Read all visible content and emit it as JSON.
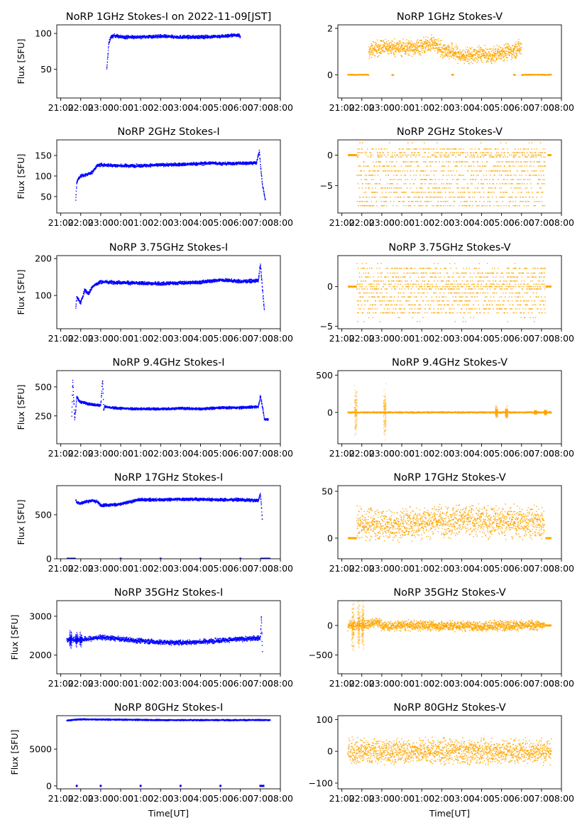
{
  "figure": {
    "shared_xlabel": "Time[UT]",
    "ylabel": "Flux [SFU]",
    "x_ticks": [
      "21:00",
      "22:00",
      "23:00",
      "00:00",
      "01:00",
      "02:00",
      "03:00",
      "04:00",
      "05:00",
      "06:00",
      "07:00",
      "08:00"
    ],
    "colors": {
      "stokes_i": "#0000ff",
      "stokes_v": "#ffa500"
    }
  },
  "chart_data": [
    {
      "type": "scatter",
      "title": "NoRP 1GHz Stokes-I on 2022-11-09[JST]",
      "xlabel": "",
      "ylabel": "Flux [SFU]",
      "color": "#0000ff",
      "xlim_hours": [
        -0.2,
        11.0
      ],
      "ylim": [
        10,
        112
      ],
      "yticks": [
        50,
        100
      ],
      "segments": [
        {
          "x": [
            2.3,
            2.35,
            2.4,
            2.5,
            2.7,
            3.0,
            4.0,
            5.0,
            6.0,
            7.0,
            8.0,
            8.5,
            8.9,
            9.0
          ],
          "y": [
            48,
            65,
            85,
            95,
            97,
            95,
            95,
            96,
            95,
            95,
            96,
            97,
            98,
            95
          ],
          "spread": 3
        }
      ]
    },
    {
      "type": "scatter",
      "title": "NoRP 1GHz Stokes-V",
      "xlabel": "",
      "ylabel": "",
      "color": "#ffa500",
      "xlim_hours": [
        -0.2,
        11.0
      ],
      "ylim": [
        -1.0,
        2.15
      ],
      "yticks": [
        0,
        2
      ],
      "segments": [
        {
          "x": [
            0.3,
            1.35
          ],
          "y": [
            0,
            0
          ],
          "spread": 0.03
        },
        {
          "x": [
            2.5,
            2.6
          ],
          "y": [
            0,
            0
          ],
          "spread": 0.03
        },
        {
          "x": [
            5.5,
            5.6
          ],
          "y": [
            0,
            0
          ],
          "spread": 0.03
        },
        {
          "x": [
            8.6,
            8.7
          ],
          "y": [
            0,
            0
          ],
          "spread": 0.03
        },
        {
          "x": [
            9.0,
            10.5
          ],
          "y": [
            0,
            0
          ],
          "spread": 0.03
        },
        {
          "x": [
            1.35,
            1.5,
            2.0,
            3.0,
            4.0,
            4.5,
            5.0,
            5.5,
            6.0,
            7.0,
            7.5,
            8.0,
            8.5,
            9.0
          ],
          "y": [
            0.9,
            1.1,
            1.2,
            1.15,
            1.2,
            1.4,
            1.1,
            1.0,
            0.8,
            0.9,
            0.8,
            1.0,
            1.0,
            1.2
          ],
          "spread": 0.45
        }
      ]
    },
    {
      "type": "scatter",
      "title": "NoRP 2GHz Stokes-I",
      "xlabel": "",
      "ylabel": "Flux [SFU]",
      "color": "#0000ff",
      "xlim_hours": [
        -0.2,
        11.0
      ],
      "ylim": [
        10,
        188
      ],
      "yticks": [
        50,
        100,
        150
      ],
      "segments": [
        {
          "x": [
            0.75,
            0.8,
            0.9,
            1.0,
            1.3,
            1.6,
            1.8,
            2.0,
            3.0,
            4.0,
            5.0,
            6.0,
            7.0,
            7.7,
            8.0,
            9.0,
            9.8,
            9.95,
            10.0,
            10.1,
            10.25
          ],
          "y": [
            40,
            85,
            95,
            100,
            103,
            110,
            125,
            127,
            125,
            125,
            127,
            128,
            130,
            132,
            130,
            131,
            132,
            160,
            130,
            80,
            40
          ],
          "spread": 5
        }
      ]
    },
    {
      "type": "scatter",
      "title": "NoRP 2GHz Stokes-V",
      "xlabel": "",
      "ylabel": "",
      "color": "#ffa500",
      "xlim_hours": [
        -0.2,
        11.0
      ],
      "ylim": [
        -9.5,
        2.5
      ],
      "yticks": [
        -5,
        0
      ],
      "quantized_levels": [
        2,
        1,
        0.4,
        0,
        -0.3,
        -1.1,
        -1.8,
        -2.6,
        -3.3,
        -4.0,
        -4.7,
        -5.4,
        -6.1,
        -6.9,
        -7.6,
        -8.3
      ],
      "segments": [
        {
          "x": [
            0.3,
            0.75
          ],
          "y": [
            0,
            0
          ],
          "spread": 0
        },
        {
          "x": [
            10.3,
            10.5
          ],
          "y": [
            0,
            0
          ],
          "spread": 0
        },
        {
          "x": [
            0.75,
            10.2
          ],
          "y": [
            -3.5,
            -3.5
          ],
          "spread": 4.2
        }
      ]
    },
    {
      "type": "scatter",
      "title": "NoRP 3.75GHz Stokes-I",
      "xlabel": "",
      "ylabel": "Flux [SFU]",
      "color": "#0000ff",
      "xlim_hours": [
        -0.2,
        11.0
      ],
      "ylim": [
        10,
        208
      ],
      "yticks": [
        100,
        200
      ],
      "segments": [
        {
          "x": [
            0.75,
            0.8,
            1.0,
            1.2,
            1.4,
            1.6,
            2.0,
            3.0,
            4.0,
            5.0,
            6.0,
            7.0,
            8.0,
            9.0,
            9.9,
            10.0,
            10.1,
            10.2
          ],
          "y": [
            65,
            95,
            80,
            115,
            105,
            125,
            137,
            135,
            133,
            132,
            134,
            136,
            142,
            138,
            140,
            185,
            120,
            60
          ],
          "spread": 6
        }
      ]
    },
    {
      "type": "scatter",
      "title": "NoRP 3.75GHz Stokes-V",
      "xlabel": "",
      "ylabel": "",
      "color": "#ffa500",
      "xlim_hours": [
        -0.2,
        11.0
      ],
      "ylim": [
        -5.3,
        3.9
      ],
      "yticks": [
        -5,
        0
      ],
      "quantized_levels": [
        2.9,
        2.3,
        1.7,
        1.2,
        0.7,
        0.3,
        0,
        -0.3,
        -0.8,
        -1.3,
        -1.8,
        -2.3,
        -2.8,
        -3.3,
        -3.9,
        -4.4
      ],
      "segments": [
        {
          "x": [
            0.3,
            0.75
          ],
          "y": [
            0,
            0
          ],
          "spread": 0
        },
        {
          "x": [
            10.2,
            10.5
          ],
          "y": [
            0,
            0
          ],
          "spread": 0
        },
        {
          "x": [
            0.75,
            10.2
          ],
          "y": [
            -0.5,
            -0.5
          ],
          "spread": 2.5
        }
      ]
    },
    {
      "type": "scatter",
      "title": "NoRP 9.4GHz Stokes-I",
      "xlabel": "",
      "ylabel": "Flux [SFU]",
      "color": "#0000ff",
      "xlim_hours": [
        -0.2,
        11.0
      ],
      "ylim": [
        10,
        640
      ],
      "yticks": [
        250,
        500
      ],
      "segments": [
        {
          "x": [
            0.55,
            0.6,
            0.7,
            0.75,
            0.8,
            0.9,
            1.0,
            1.5,
            2.0,
            2.1,
            2.15,
            2.2,
            2.5,
            3.0,
            4.0,
            5.0,
            6.0,
            7.0,
            8.0,
            9.0,
            9.9,
            10.0,
            10.1,
            10.2,
            10.4
          ],
          "y": [
            220,
            560,
            220,
            300,
            420,
            380,
            370,
            350,
            340,
            560,
            300,
            330,
            320,
            315,
            310,
            310,
            315,
            310,
            320,
            320,
            330,
            420,
            330,
            220,
            220
          ],
          "spread": 14
        }
      ]
    },
    {
      "type": "scatter",
      "title": "NoRP 9.4GHz Stokes-V",
      "xlabel": "",
      "ylabel": "",
      "color": "#ffa500",
      "xlim_hours": [
        -0.2,
        11.0
      ],
      "ylim": [
        -420,
        560
      ],
      "yticks": [
        0,
        500
      ],
      "segments": [
        {
          "x": [
            0.3,
            10.5
          ],
          "y": [
            0,
            0
          ],
          "spread": 12
        }
      ],
      "bursts": [
        {
          "x": 0.7,
          "amp": 450
        },
        {
          "x": 2.15,
          "amp": 420
        },
        {
          "x": 7.75,
          "amp": 100
        },
        {
          "x": 8.25,
          "amp": 110
        },
        {
          "x": 9.7,
          "amp": 40
        },
        {
          "x": 10.2,
          "amp": 50
        }
      ]
    },
    {
      "type": "scatter",
      "title": "NoRP 17GHz Stokes-I",
      "xlabel": "",
      "ylabel": "Flux [SFU]",
      "color": "#0000ff",
      "xlim_hours": [
        -0.2,
        11.0
      ],
      "ylim": [
        0,
        830
      ],
      "yticks": [
        0,
        500
      ],
      "segments": [
        {
          "x": [
            0.75,
            0.8,
            1.0,
            1.5,
            1.8,
            2.0,
            2.5,
            3.0,
            3.8,
            4.0,
            5.0,
            6.0,
            7.0,
            8.0,
            9.0,
            9.9,
            10.0,
            10.05,
            10.1
          ],
          "y": [
            670,
            640,
            630,
            660,
            650,
            610,
            610,
            620,
            665,
            670,
            670,
            675,
            675,
            670,
            670,
            660,
            740,
            600,
            420
          ],
          "spread": 22
        },
        {
          "x": [
            0.3,
            0.75
          ],
          "y": [
            0,
            0
          ],
          "spread": 0
        },
        {
          "x": [
            2.95,
            3.05
          ],
          "y": [
            0,
            0
          ],
          "spread": 0
        },
        {
          "x": [
            4.95,
            5.05
          ],
          "y": [
            0,
            0
          ],
          "spread": 0
        },
        {
          "x": [
            6.95,
            7.05
          ],
          "y": [
            0,
            0
          ],
          "spread": 0
        },
        {
          "x": [
            8.95,
            9.05
          ],
          "y": [
            0,
            0
          ],
          "spread": 0
        },
        {
          "x": [
            10.0,
            10.5
          ],
          "y": [
            0,
            0
          ],
          "spread": 0
        }
      ]
    },
    {
      "type": "scatter",
      "title": "NoRP 17GHz Stokes-V",
      "xlabel": "",
      "ylabel": "",
      "color": "#ffa500",
      "xlim_hours": [
        -0.2,
        11.0
      ],
      "ylim": [
        -22,
        56
      ],
      "yticks": [
        0,
        50
      ],
      "segments": [
        {
          "x": [
            0.3,
            0.75
          ],
          "y": [
            0,
            0
          ],
          "spread": 0
        },
        {
          "x": [
            10.2,
            10.5
          ],
          "y": [
            0,
            0
          ],
          "spread": 0
        },
        {
          "x": [
            0.75,
            2.0,
            2.5,
            3.0,
            4.0,
            5.0,
            6.0,
            7.0,
            8.0,
            9.0,
            10.15
          ],
          "y": [
            16,
            16,
            13,
            15,
            18,
            19,
            19,
            18,
            18,
            17,
            17
          ],
          "spread": 22
        }
      ]
    },
    {
      "type": "scatter",
      "title": "NoRP 35GHz Stokes-I",
      "xlabel": "",
      "ylabel": "Flux [SFU]",
      "color": "#0000ff",
      "xlim_hours": [
        -0.2,
        11.0
      ],
      "ylim": [
        1520,
        3400
      ],
      "yticks": [
        2000,
        3000
      ],
      "segments": [
        {
          "x": [
            0.3,
            0.5,
            1.0,
            1.5,
            1.8,
            2.0,
            2.5,
            3.0,
            4.0,
            5.0,
            6.0,
            7.0,
            8.0,
            9.0,
            10.0,
            10.05,
            10.1
          ],
          "y": [
            2380,
            2400,
            2400,
            2420,
            2450,
            2460,
            2440,
            2410,
            2370,
            2330,
            2320,
            2340,
            2380,
            2410,
            2440,
            3000,
            2050
          ],
          "spread": 80
        }
      ],
      "bursts": [
        {
          "x": 0.5,
          "amp": 350
        },
        {
          "x": 0.8,
          "amp": 250
        },
        {
          "x": 1.0,
          "amp": 250
        }
      ]
    },
    {
      "type": "scatter",
      "title": "NoRP 35GHz Stokes-V",
      "xlabel": "",
      "ylabel": "",
      "color": "#ffa500",
      "xlim_hours": [
        -0.2,
        11.0
      ],
      "ylim": [
        -820,
        420
      ],
      "yticks": [
        -500,
        0
      ],
      "segments": [
        {
          "x": [
            0.3,
            1.0,
            1.5,
            1.8,
            2.0,
            2.5,
            3.0,
            4.0,
            5.0,
            6.0,
            7.0,
            8.0,
            9.0,
            10.15
          ],
          "y": [
            0,
            10,
            40,
            60,
            0,
            -20,
            0,
            0,
            -10,
            -10,
            -20,
            0,
            0,
            0
          ],
          "spread": 110
        },
        {
          "x": [
            10.15,
            10.5
          ],
          "y": [
            0,
            0
          ],
          "spread": 0
        }
      ],
      "bursts": [
        {
          "x": 0.55,
          "amp": 640
        },
        {
          "x": 0.85,
          "amp": 600
        },
        {
          "x": 1.05,
          "amp": 600
        }
      ]
    },
    {
      "type": "scatter",
      "title": "NoRP 80GHz Stokes-I",
      "xlabel": "Time[UT]",
      "ylabel": "Flux [SFU]",
      "color": "#0000ff",
      "xlim_hours": [
        -0.2,
        11.0
      ],
      "ylim": [
        -400,
        9550
      ],
      "yticks": [
        0,
        5000
      ],
      "segments": [
        {
          "x": [
            0.3,
            1.0,
            3.0,
            5.0,
            7.0,
            9.0,
            10.5
          ],
          "y": [
            8900,
            9050,
            9000,
            8950,
            8950,
            8950,
            8950
          ],
          "spread": 120
        },
        {
          "x": [
            0.75,
            0.85
          ],
          "y": [
            0,
            0
          ],
          "spread": 0
        },
        {
          "x": [
            1.95,
            2.05
          ],
          "y": [
            0,
            0
          ],
          "spread": 0
        },
        {
          "x": [
            3.95,
            4.05
          ],
          "y": [
            0,
            0
          ],
          "spread": 0
        },
        {
          "x": [
            5.95,
            6.05
          ],
          "y": [
            0,
            0
          ],
          "spread": 0
        },
        {
          "x": [
            7.95,
            8.05
          ],
          "y": [
            0,
            0
          ],
          "spread": 0
        },
        {
          "x": [
            9.95,
            10.2
          ],
          "y": [
            0,
            0
          ],
          "spread": 0
        }
      ]
    },
    {
      "type": "scatter",
      "title": "NoRP 80GHz Stokes-V",
      "xlabel": "Time[UT]",
      "ylabel": "",
      "color": "#ffa500",
      "xlim_hours": [
        -0.2,
        11.0
      ],
      "ylim": [
        -118,
        112
      ],
      "yticks": [
        -100,
        0,
        100
      ],
      "segments": [
        {
          "x": [
            0.3,
            10.5
          ],
          "y": [
            0,
            0
          ],
          "spread": 50
        }
      ]
    }
  ]
}
